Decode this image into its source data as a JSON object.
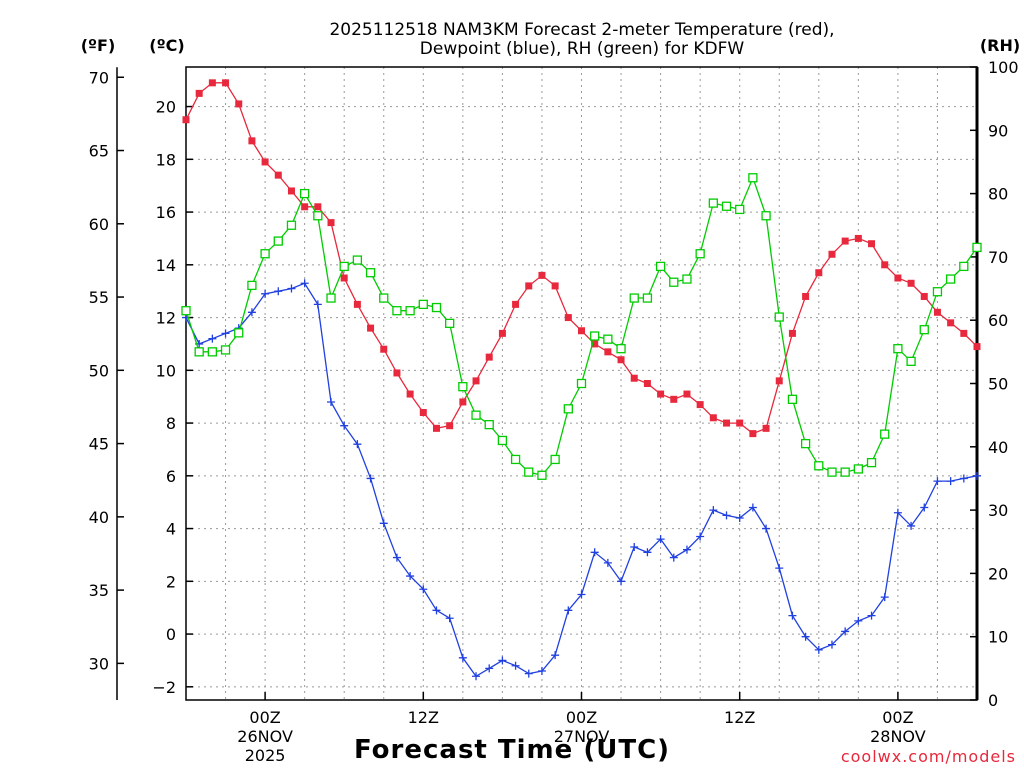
{
  "chart_data": {
    "type": "line",
    "title_line1": "2025112518 NAM3KM Forecast 2-meter Temperature (red),",
    "title_line2": "Dewpoint (blue), RH (green) for KDFW",
    "xlabel": "Forecast Time (UTC)",
    "credit": "coolwx.com/models",
    "units": {
      "fahrenheit": "(ºF)",
      "celsius": "(ºC)",
      "rh": "(RH)"
    },
    "x_range_hours": [
      0,
      60
    ],
    "y_celsius_range": [
      -2.5,
      21.5
    ],
    "y_rh_range": [
      0,
      100
    ],
    "fahrenheit_ticks": [
      30,
      35,
      40,
      45,
      50,
      55,
      60,
      65,
      70
    ],
    "celsius_ticks": [
      -2,
      0,
      2,
      4,
      6,
      8,
      10,
      12,
      14,
      16,
      18,
      20
    ],
    "rh_ticks": [
      0,
      10,
      20,
      30,
      40,
      50,
      60,
      70,
      80,
      90,
      100
    ],
    "x_ticks": [
      {
        "hour": 6,
        "label": "00Z",
        "label2": "26NOV",
        "label3": "2025"
      },
      {
        "hour": 18,
        "label": "12Z",
        "label2": "",
        "label3": ""
      },
      {
        "hour": 30,
        "label": "00Z",
        "label2": "27NOV",
        "label3": ""
      },
      {
        "hour": 42,
        "label": "12Z",
        "label2": "",
        "label3": ""
      },
      {
        "hour": 54,
        "label": "00Z",
        "label2": "28NOV",
        "label3": ""
      }
    ],
    "series": [
      {
        "name": "2-meter Temperature",
        "color": "#e8283c",
        "marker": "filled-square",
        "axis": "celsius",
        "values": [
          19.5,
          20.5,
          20.9,
          20.9,
          20.1,
          18.7,
          17.9,
          17.4,
          16.8,
          16.2,
          16.2,
          15.6,
          13.5,
          12.5,
          11.6,
          10.8,
          9.9,
          9.1,
          8.4,
          7.8,
          7.9,
          8.8,
          9.6,
          10.5,
          11.4,
          12.5,
          13.2,
          13.6,
          13.2,
          12.0,
          11.5,
          11.0,
          10.7,
          10.4,
          9.7,
          9.5,
          9.1,
          8.9,
          9.1,
          8.7,
          8.2,
          8.0,
          8.0,
          7.6,
          7.8,
          9.6,
          11.4,
          12.8,
          13.7,
          14.4,
          14.9,
          15.0,
          14.8,
          14.0,
          13.5,
          13.3,
          12.8,
          12.2,
          11.8,
          11.4,
          10.9
        ]
      },
      {
        "name": "Dewpoint",
        "color": "#2040e0",
        "marker": "plus",
        "axis": "celsius",
        "values": [
          12.0,
          11.0,
          11.2,
          11.4,
          11.6,
          12.2,
          12.9,
          13.0,
          13.1,
          13.3,
          12.5,
          8.8,
          7.9,
          7.2,
          5.9,
          4.2,
          2.9,
          2.2,
          1.7,
          0.9,
          0.6,
          -0.9,
          -1.6,
          -1.3,
          -1.0,
          -1.2,
          -1.5,
          -1.4,
          -0.8,
          0.9,
          1.5,
          3.1,
          2.7,
          2.0,
          3.3,
          3.1,
          3.6,
          2.9,
          3.2,
          3.7,
          4.7,
          4.5,
          4.4,
          4.8,
          4.0,
          2.5,
          0.7,
          -0.1,
          -0.6,
          -0.4,
          0.1,
          0.5,
          0.7,
          1.4,
          4.6,
          4.1,
          4.8,
          5.8,
          5.8,
          5.9,
          6.0
        ]
      },
      {
        "name": "RH",
        "color": "#00cc00",
        "marker": "open-square",
        "axis": "rh",
        "values": [
          61.5,
          55.0,
          55.0,
          55.3,
          58.0,
          65.5,
          70.5,
          72.5,
          75.0,
          80.0,
          76.5,
          63.5,
          68.5,
          69.5,
          67.5,
          63.5,
          61.5,
          61.5,
          62.5,
          62.0,
          59.5,
          49.5,
          45.0,
          43.5,
          41.0,
          38.0,
          36.0,
          35.5,
          38.0,
          46.0,
          50.0,
          57.5,
          57.0,
          55.5,
          63.5,
          63.5,
          68.5,
          66.0,
          66.5,
          70.5,
          78.5,
          78.0,
          77.5,
          82.5,
          76.5,
          60.5,
          47.5,
          40.5,
          37.0,
          36.0,
          36.0,
          36.5,
          37.5,
          42.0,
          55.5,
          53.5,
          58.5,
          64.5,
          66.5,
          68.5,
          71.5
        ]
      }
    ]
  }
}
